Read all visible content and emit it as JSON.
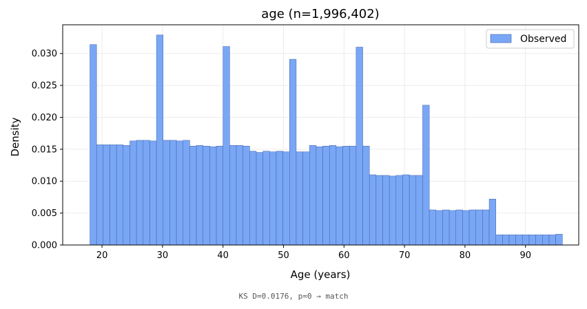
{
  "chart_data": {
    "type": "bar",
    "title": "age  (n=1,996,402)",
    "xlabel": "Age (years)",
    "ylabel": "Density",
    "xlim": [
      13.5,
      98.8
    ],
    "ylim": [
      0,
      0.0345
    ],
    "xticks": [
      20,
      30,
      40,
      50,
      60,
      70,
      80,
      90
    ],
    "yticks": [
      0.0,
      0.005,
      0.01,
      0.015,
      0.02,
      0.025,
      0.03
    ],
    "ytick_labels": [
      "0.000",
      "0.005",
      "0.010",
      "0.015",
      "0.020",
      "0.025",
      "0.030"
    ],
    "grid": true,
    "legend_position": "top-right",
    "bin_start": 18,
    "bin_width": 1.1,
    "series": [
      {
        "name": "Observed",
        "color": "#7aa7f5",
        "edge_color": "#3f5fa8",
        "values": [
          0.0314,
          0.0157,
          0.0157,
          0.0157,
          0.0157,
          0.0156,
          0.0163,
          0.0164,
          0.0164,
          0.0163,
          0.0329,
          0.0164,
          0.0164,
          0.0163,
          0.0164,
          0.0155,
          0.0156,
          0.0155,
          0.0154,
          0.0155,
          0.0311,
          0.0156,
          0.0156,
          0.0155,
          0.0147,
          0.0145,
          0.0147,
          0.0146,
          0.0147,
          0.0146,
          0.0291,
          0.0146,
          0.0146,
          0.0156,
          0.0154,
          0.0155,
          0.0156,
          0.0154,
          0.0155,
          0.0155,
          0.031,
          0.0155,
          0.011,
          0.0109,
          0.0109,
          0.0108,
          0.0109,
          0.011,
          0.0109,
          0.0109,
          0.0219,
          0.0055,
          0.0054,
          0.0055,
          0.0054,
          0.0055,
          0.0054,
          0.0055,
          0.0055,
          0.0055,
          0.0072,
          0.0016,
          0.0016,
          0.0016,
          0.0016,
          0.0016,
          0.0016,
          0.0016,
          0.0016,
          0.0016,
          0.0017
        ]
      }
    ]
  },
  "footer": {
    "text": "KS D=0.0176, p=0 → match"
  }
}
